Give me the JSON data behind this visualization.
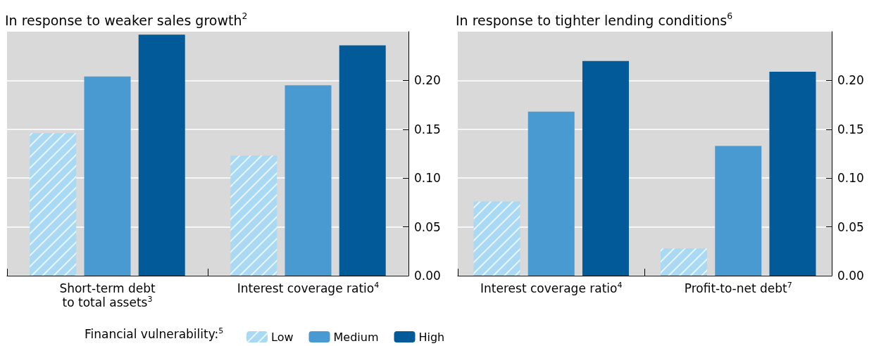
{
  "chart_data": [
    {
      "type": "bar",
      "title": "In response to weaker sales growth$^{2}$",
      "categories": [
        "Short-term debt\nto total assets$^{3}$",
        "Interest coverage ratio$^{4}$"
      ],
      "series": [
        {
          "name": "Low",
          "color": "#a9d9f3",
          "values": [
            0.146,
            0.123
          ]
        },
        {
          "name": "Medium",
          "color": "#4a9ad2",
          "values": [
            0.204,
            0.195
          ]
        },
        {
          "name": "High",
          "color": "#035a99",
          "values": [
            0.247,
            0.236
          ]
        }
      ],
      "ylim": [
        0,
        0.25
      ],
      "yticks": [
        {
          "value": 0,
          "label": "0.00"
        },
        {
          "value": 0.05,
          "label": "0.05"
        },
        {
          "value": 0.1,
          "label": "0.10"
        },
        {
          "value": 0.15,
          "label": "0.15"
        },
        {
          "value": 0.2,
          "label": "0.20"
        }
      ],
      "grid": "y",
      "legend": "bottom",
      "legend_title": "Financial vulnerability:$^{5}$"
    },
    {
      "type": "bar",
      "title": "In response to tighter lending conditions$^{6}$",
      "categories": [
        "Interest coverage ratio$^{4}$",
        "Profit-to-net debt$^{7}$"
      ],
      "series": [
        {
          "color": "#a9d9f3",
          "values": [
            0.076,
            0.028
          ]
        },
        {
          "color": "#4a9ad2",
          "values": [
            0.168,
            0.133
          ]
        },
        {
          "color": "#035a99",
          "values": [
            0.22,
            0.209
          ]
        }
      ],
      "ylim": [
        0,
        0.25
      ],
      "yticks": [
        {
          "value": 0,
          "label": "0.00"
        },
        {
          "value": 0.05,
          "label": "0.05"
        },
        {
          "value": 0.1,
          "label": "0.10"
        },
        {
          "value": 0.15,
          "label": "0.15"
        },
        {
          "value": 0.2,
          "label": "0.20"
        }
      ],
      "grid": "y",
      "legend": false
    }
  ]
}
